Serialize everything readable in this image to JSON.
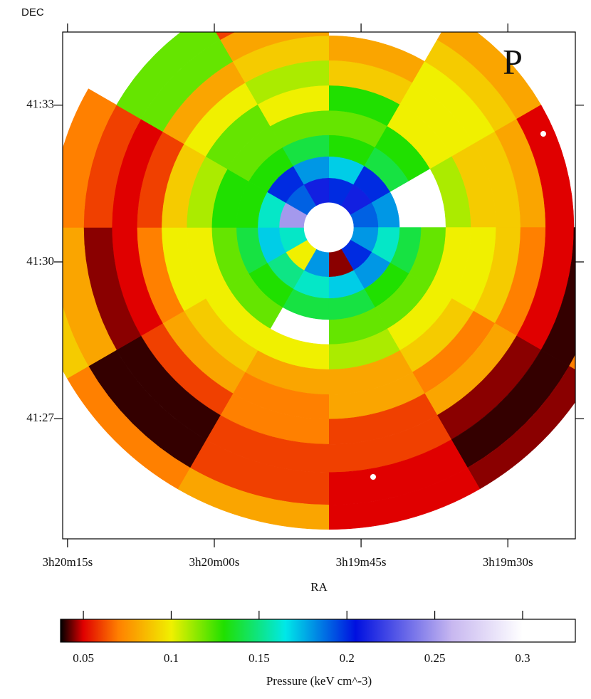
{
  "chart_data": {
    "type": "polar-heatmap",
    "label": "P",
    "xlabel": "RA",
    "ylabel": "DEC",
    "colorbar_label": "Pressure (keV cm^-3)",
    "xlim": [
      12015.5,
      11963.1
    ],
    "xticks": [
      {
        "value": 12015,
        "label": "3h20m15s"
      },
      {
        "value": 12000,
        "label": "3h20m00s"
      },
      {
        "value": 11985,
        "label": "3h19m45s"
      },
      {
        "value": 11970,
        "label": "3h19m30s"
      }
    ],
    "ylim": [
      24.7,
      34.4
    ],
    "yticks": [
      {
        "value": 33,
        "label": "41:33"
      },
      {
        "value": 30,
        "label": "41:30"
      },
      {
        "value": 27,
        "label": "41:27"
      }
    ],
    "center": [
      11988.3,
      30.66
    ],
    "clim": [
      0.037,
      0.33
    ],
    "cticks": [
      0.05,
      0.1,
      0.15,
      0.2,
      0.25,
      0.3
    ],
    "colormap": [
      {
        "value": 0.037,
        "color": "#000000"
      },
      {
        "value": 0.05,
        "color": "#e00000"
      },
      {
        "value": 0.07,
        "color": "#ff8000"
      },
      {
        "value": 0.1,
        "color": "#f0f000"
      },
      {
        "value": 0.13,
        "color": "#20e000"
      },
      {
        "value": 0.165,
        "color": "#00e8e8"
      },
      {
        "value": 0.205,
        "color": "#0010e0"
      },
      {
        "value": 0.26,
        "color": "#c8b8f0"
      },
      {
        "value": 0.3,
        "color": "#ffffff"
      },
      {
        "value": 0.33,
        "color": "#ffffff"
      }
    ],
    "rings": [
      {
        "r": [
          0.48,
          0.95
        ],
        "values": [
          0.2,
          0.21,
          0.19,
          0.18,
          0.2,
          0.045,
          0.18,
          0.1,
          0.16,
          0.25,
          0.19,
          0.21
        ]
      },
      {
        "r": [
          0.95,
          1.36
        ],
        "values": [
          0.17,
          0.2,
          0.18,
          0.16,
          0.18,
          0.17,
          0.16,
          0.15,
          0.17,
          0.16,
          0.2,
          0.18
        ]
      },
      {
        "r": [
          1.36,
          1.77
        ],
        "values": [
          0.13,
          0.14,
          0.3,
          0.14,
          0.13,
          0.14,
          0.14,
          0.13,
          0.14,
          0.13,
          0.13,
          0.14
        ]
      },
      {
        "r": [
          1.77,
          2.24
        ],
        "values": [
          0.12,
          0.13,
          0.3,
          0.12,
          0.12,
          0.12,
          0.3,
          0.12,
          0.12,
          0.13,
          0.12,
          0.12
        ]
      },
      {
        "r": [
          2.24,
          2.72
        ],
        "values": [
          0.13,
          0.1,
          0.11,
          0.1,
          0.1,
          0.11,
          0.1,
          0.1,
          0.1,
          0.11,
          0.12,
          0.1
        ]
      },
      {
        "r": [
          2.72,
          3.2
        ],
        "values": [
          0.09,
          0.1,
          0.09,
          0.1,
          0.09,
          0.08,
          0.08,
          0.09,
          0.1,
          0.09,
          0.1,
          0.11
        ]
      },
      {
        "r": [
          3.2,
          3.67
        ],
        "values": [
          0.08,
          0.1,
          0.09,
          0.09,
          0.07,
          0.08,
          0.07,
          0.08,
          0.07,
          0.06,
          0.08,
          0.09
        ]
      },
      {
        "r": [
          3.67,
          4.15
        ],
        "values": [
          null,
          0.09,
          0.08,
          0.07,
          0.08,
          0.06,
          0.07,
          0.06,
          0.05,
          0.05,
          0.12,
          0.08
        ]
      },
      {
        "r": [
          4.15,
          4.69
        ],
        "values": [
          null,
          0.08,
          0.05,
          0.05,
          0.045,
          0.06,
          0.06,
          0.04,
          0.045,
          0.06,
          0.12,
          0.06
        ]
      },
      {
        "r": [
          4.69,
          5.31
        ],
        "values": [
          null,
          null,
          null,
          0.04,
          0.04,
          0.05,
          0.06,
          0.04,
          0.08,
          0.07,
          null,
          null
        ]
      },
      {
        "r": [
          5.31,
          5.78
        ],
        "values": [
          null,
          null,
          null,
          0.07,
          0.045,
          0.05,
          0.08,
          0.07,
          0.09,
          null,
          null,
          null
        ]
      }
    ]
  }
}
